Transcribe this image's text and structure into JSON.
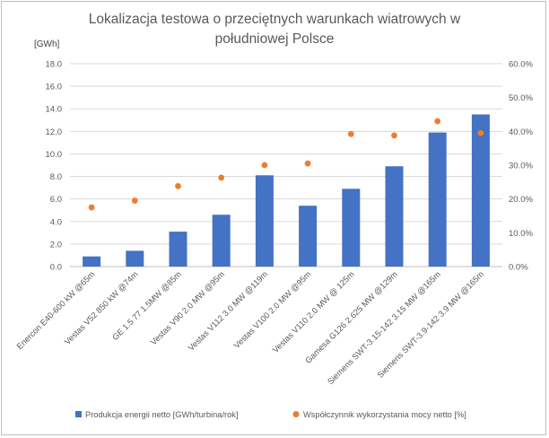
{
  "chart_data": {
    "type": "bar",
    "title_lines": [
      "Lokalizacja testowa o przeciętnych warunkach wiatrowych w",
      "południowej Polsce"
    ],
    "ylabel": "[GWh]",
    "ylim": [
      0,
      18
    ],
    "y_ticks": [
      "0.0",
      "2.0",
      "4.0",
      "6.0",
      "8.0",
      "10.0",
      "12.0",
      "14.0",
      "16.0",
      "18.0"
    ],
    "y2lim": [
      0,
      60
    ],
    "y2_ticks": [
      "0.0%",
      "10.0%",
      "20.0%",
      "30.0%",
      "40.0%",
      "50.0%",
      "60.0%"
    ],
    "grid": true,
    "legend_position": "bottom",
    "categories": [
      "Enercon E40-600 kW @65m",
      "Vestas V52 850 kW @74m",
      "GE 1.5 77 1.5MW @85m",
      "Vestas V90 2.0 MW @95m",
      "Vestas V112 3.0 MW @119m",
      "Vestas V100 2.0 MW @95m",
      "Vestas V110 2.0 MW @ 125m",
      "Gamesa G126 2.625 MW @129m",
      "Siemens SWT-3.15-142 3.15 MW @165m",
      "Siemens SWT-3.9-142 3.9 MW @165m"
    ],
    "series": [
      {
        "name": "Produkcja energii netto [GWh/turbina/rok]",
        "type": "bar",
        "axis": "left",
        "color": "#4472c4",
        "values": [
          0.9,
          1.4,
          3.1,
          4.6,
          8.1,
          5.4,
          6.9,
          8.9,
          11.9,
          13.5
        ]
      },
      {
        "name": "Współczynnik wykorzystania mocy netto [%]",
        "type": "scatter",
        "axis": "right",
        "color": "#ed7d31",
        "values": [
          17.5,
          19.5,
          23.8,
          26.3,
          30.0,
          30.5,
          39.2,
          38.8,
          43.0,
          39.5
        ]
      }
    ]
  }
}
